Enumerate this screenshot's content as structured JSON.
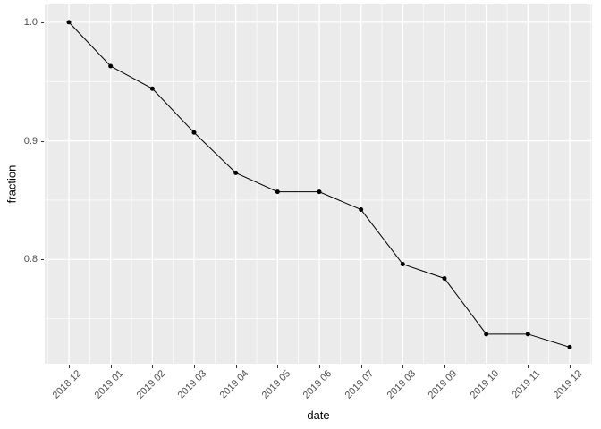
{
  "chart_data": {
    "type": "line",
    "title": "",
    "xlabel": "date",
    "ylabel": "fraction",
    "categories": [
      "2018 12",
      "2019 01",
      "2019 02",
      "2019 03",
      "2019 04",
      "2019 05",
      "2019 06",
      "2019 07",
      "2019 08",
      "2019 09",
      "2019 10",
      "2019 11",
      "2019 12"
    ],
    "values": [
      1.0,
      0.963,
      0.944,
      0.907,
      0.873,
      0.857,
      0.857,
      0.842,
      0.796,
      0.784,
      0.737,
      0.737,
      0.726
    ],
    "ylim": [
      0.712,
      1.015
    ],
    "yticks_major": [
      1.0,
      0.9,
      0.8
    ],
    "ytick_labels": [
      "1.0",
      "0.9",
      "0.8"
    ],
    "yticks_minor": [
      0.95,
      0.85,
      0.75
    ],
    "grid": "on",
    "legend": "none",
    "marker": "point",
    "colors": {
      "figure_bg": "#FFFFFF",
      "panel_bg": "#EBEBEB",
      "gridline": "#FFFFFF",
      "series": "#000000",
      "axis_text": "#4D4D4D",
      "axis_title": "#000000",
      "tick_mark": "#333333"
    }
  }
}
